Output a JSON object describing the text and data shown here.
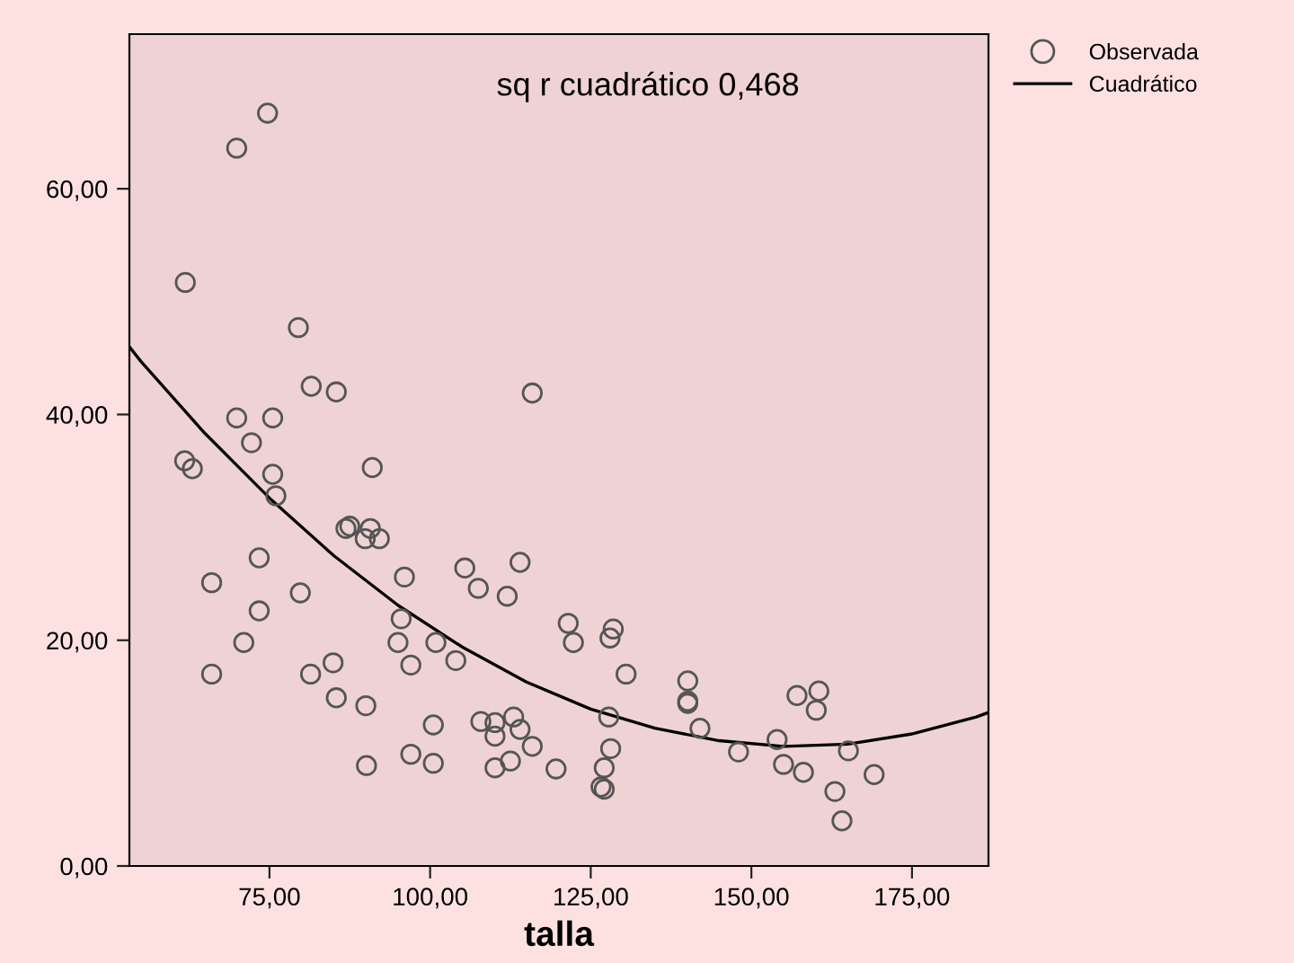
{
  "chart_data": {
    "type": "scatter",
    "xlabel": "talla",
    "annotations": [
      "sq r cuadrático 0,468"
    ],
    "xlim": [
      53.2,
      186.9
    ],
    "ylim": [
      0,
      73.7
    ],
    "xticks": [
      {
        "value": 75,
        "label": "75,00"
      },
      {
        "value": 100,
        "label": "100,00"
      },
      {
        "value": 125,
        "label": "125,00"
      },
      {
        "value": 150,
        "label": "150,00"
      },
      {
        "value": 175,
        "label": "175,00"
      }
    ],
    "yticks": [
      {
        "value": 0,
        "label": "0,00"
      },
      {
        "value": 20,
        "label": "20,00"
      },
      {
        "value": 40,
        "label": "40,00"
      },
      {
        "value": 60,
        "label": "60,00"
      }
    ],
    "grid": false,
    "legend": "top right",
    "series": [
      {
        "name": "Observada",
        "marker": "circle",
        "color": "#555555",
        "x": [
          74.7,
          69.9,
          61.9,
          79.5,
          81.5,
          85.4,
          115.9,
          69.9,
          75.5,
          72.2,
          61.8,
          63.0,
          91.0,
          75.5,
          76.0,
          86.9,
          87.5,
          90.7,
          89.9,
          92.1,
          73.4,
          96.0,
          105.4,
          114.0,
          66.0,
          107.5,
          112.0,
          79.8,
          73.4,
          95.5,
          71.0,
          95.0,
          100.9,
          104.0,
          97.0,
          84.9,
          66.0,
          81.4,
          85.4,
          90.0,
          100.5,
          107.9,
          110.1,
          113.0,
          110.1,
          114.0,
          115.9,
          97.0,
          100.5,
          90.1,
          112.5,
          110.1,
          119.6,
          121.5,
          122.3,
          128.5,
          128.0,
          130.5,
          140.1,
          140.1,
          140.1,
          127.8,
          142.0,
          128.1,
          127.1,
          126.6,
          127.1,
          148.0,
          154.0,
          157.1,
          160.5,
          160.1,
          155.0,
          158.1,
          165.1,
          169.1,
          163.0,
          164.1
        ],
        "values": [
          66.7,
          63.6,
          51.7,
          47.7,
          42.5,
          42.0,
          41.9,
          39.7,
          39.7,
          37.5,
          35.9,
          35.2,
          35.3,
          34.7,
          32.8,
          29.9,
          30.1,
          29.9,
          29.0,
          29.0,
          27.3,
          25.6,
          26.4,
          26.9,
          25.1,
          24.6,
          23.9,
          24.2,
          22.6,
          21.9,
          19.8,
          19.8,
          19.8,
          18.2,
          17.8,
          18.0,
          17.0,
          17.0,
          14.9,
          14.2,
          12.5,
          12.8,
          12.7,
          13.2,
          11.5,
          12.1,
          10.6,
          9.9,
          9.1,
          8.9,
          9.3,
          8.7,
          8.6,
          21.5,
          19.8,
          21.0,
          20.2,
          17.0,
          16.4,
          14.6,
          14.4,
          13.2,
          12.2,
          10.4,
          8.7,
          7.0,
          6.8,
          10.1,
          11.2,
          15.1,
          15.5,
          13.8,
          9.0,
          8.3,
          10.2,
          8.1,
          6.6,
          4.0
        ]
      },
      {
        "name": "Cuadrático",
        "type": "line",
        "color": "#000000",
        "line_style": "solid",
        "x": [
          53.2,
          55,
          65,
          75,
          85,
          95,
          105,
          115,
          125,
          135,
          145,
          155,
          165,
          175,
          185,
          186.9
        ],
        "values": [
          46.0,
          44.7,
          38.3,
          32.6,
          27.5,
          23.1,
          19.4,
          16.3,
          13.9,
          12.2,
          11.1,
          10.6,
          10.8,
          11.7,
          13.2,
          13.6
        ]
      }
    ]
  }
}
